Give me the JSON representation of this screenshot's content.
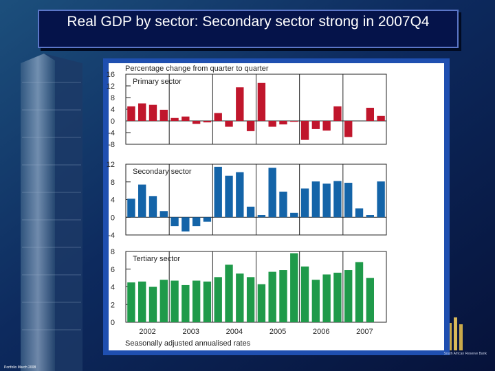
{
  "slide": {
    "title": "Real GDP by sector: Secondary sector strong in 2007Q4",
    "footer_text": "Portfolio March 2008",
    "bank_name": "South African Reserve Bank"
  },
  "colors": {
    "primary": "#c0162c",
    "secondary": "#1464a8",
    "tertiary": "#1f9a4a",
    "background": "#0d1f4d"
  },
  "chart_data": {
    "type": "bar",
    "title": "Percentage change from quarter to quarter",
    "note": "Seasonally adjusted annualised rates",
    "years": [
      "2002",
      "2003",
      "2004",
      "2005",
      "2006",
      "2007"
    ],
    "categories": [
      "2002Q1",
      "2002Q2",
      "2002Q3",
      "2002Q4",
      "2003Q1",
      "2003Q2",
      "2003Q3",
      "2003Q4",
      "2004Q1",
      "2004Q2",
      "2004Q3",
      "2004Q4",
      "2005Q1",
      "2005Q2",
      "2005Q3",
      "2005Q4",
      "2006Q1",
      "2006Q2",
      "2006Q3",
      "2006Q4",
      "2007Q1",
      "2007Q2",
      "2007Q3",
      "2007Q4"
    ],
    "panels": [
      {
        "name": "Primary sector",
        "ylim": [
          -8,
          16
        ],
        "yticks": [
          "16",
          "12",
          "8",
          "4",
          "0",
          "-4",
          "-8"
        ],
        "values": [
          5,
          6,
          5.5,
          3.8,
          1,
          1.5,
          -1,
          -0.5,
          2.7,
          -2,
          11.5,
          -3.5,
          13,
          -2,
          -1.2,
          -0.3,
          -6.5,
          -2.8,
          -3.3,
          5,
          -5.5,
          0,
          4.5,
          1.7
        ]
      },
      {
        "name": "Secondary sector",
        "ylim": [
          -4,
          12
        ],
        "yticks": [
          "12",
          "8",
          "4",
          "0",
          "-4"
        ],
        "values": [
          4.2,
          7.4,
          4.8,
          1.4,
          -2,
          -3.2,
          -2,
          -1,
          11.4,
          9.4,
          10.2,
          2.4,
          0.5,
          11.2,
          5.8,
          1,
          6.5,
          8.1,
          7.6,
          8.2,
          7.8,
          2,
          0.5,
          8.1
        ]
      },
      {
        "name": "Tertiary sector",
        "ylim": [
          0,
          8
        ],
        "yticks": [
          "8",
          "6",
          "4",
          "2",
          "0"
        ],
        "values": [
          4.5,
          4.6,
          4,
          4.8,
          4.7,
          4.2,
          4.7,
          4.6,
          5.1,
          6.5,
          5.5,
          5.1,
          4.3,
          5.7,
          5.9,
          7.8,
          6.3,
          4.8,
          5.4,
          5.6,
          5.9,
          6.8,
          5,
          0
        ]
      }
    ]
  }
}
